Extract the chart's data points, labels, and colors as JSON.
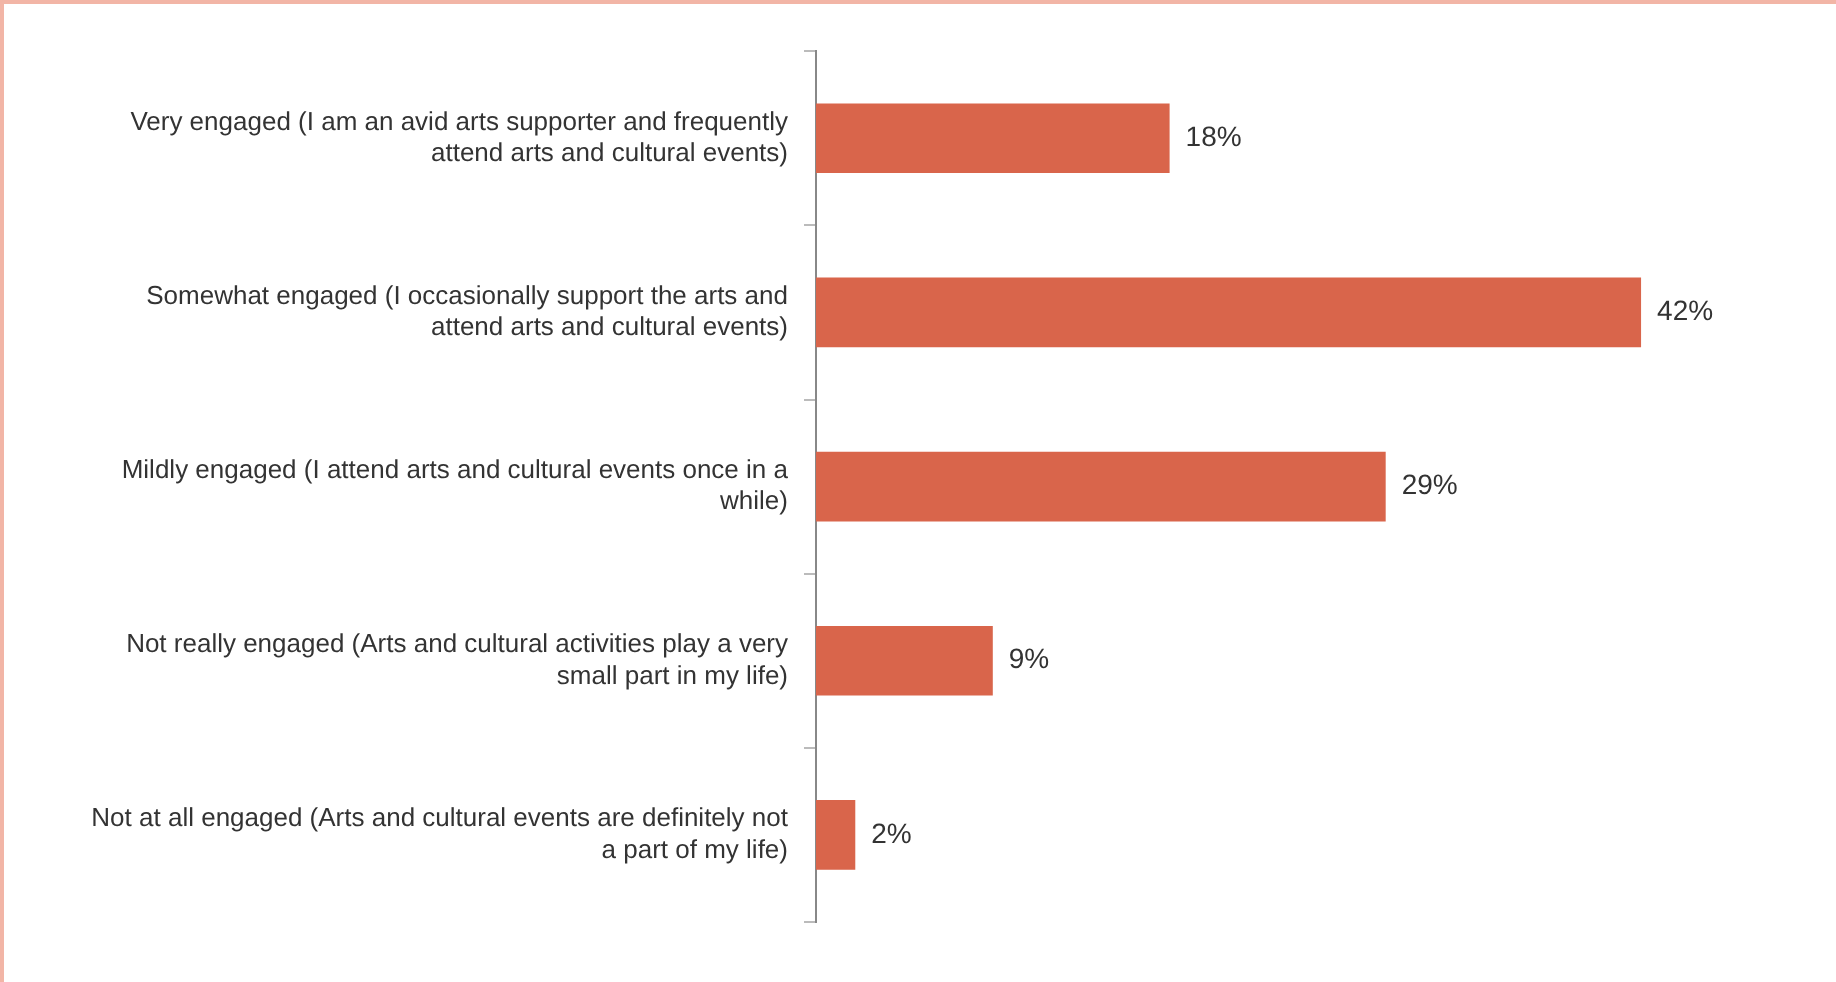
{
  "chart_data": {
    "type": "bar",
    "orientation": "horizontal",
    "categories": [
      "Very engaged (I am an avid arts supporter and frequently attend arts and cultural events)",
      "Somewhat engaged (I occasionally support the arts and attend arts and cultural events)",
      "Mildly engaged (I attend arts and cultural events once in a while)",
      "Not really engaged (Arts and cultural activities play a very small part in my life)",
      "Not at all engaged (Arts and cultural events are definitely not a part of my life)"
    ],
    "values": [
      18,
      42,
      29,
      9,
      2
    ],
    "value_labels": [
      "18%",
      "42%",
      "29%",
      "9%",
      "2%"
    ],
    "color": "#d9654b",
    "tick_labels": "y",
    "grid": false,
    "legend": false
  }
}
